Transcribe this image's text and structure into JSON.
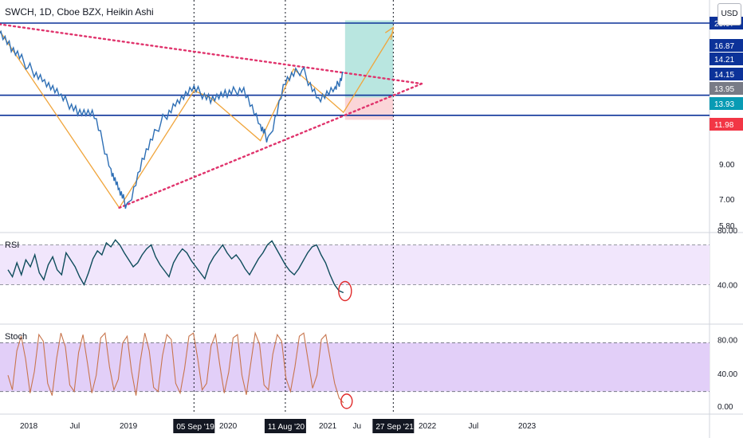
{
  "header": {
    "symbol_line": "SWCH, 1D, Cboe BZX, Heikin Ashi",
    "currency_button": "USD"
  },
  "colors": {
    "price_line": "#2e6fb5",
    "resistance_line": "#0c3299",
    "trend_dots": "#e0336c",
    "zigzag": "#f0a53c",
    "rsi_line": "#0f4c5c",
    "stoch_line": "#c8754d",
    "rsi_band": "#f1e6fc",
    "stoch_band": "#e2cff8",
    "target_zone": "#b9e6e0",
    "stop_zone": "#fbd5d8",
    "tag_blue": "#0c3299",
    "tag_grey": "#787b86",
    "tag_teal": "#089bb4",
    "tag_red": "#f23645",
    "vline": "#131722"
  },
  "chart_data": [
    {
      "type": "line",
      "pane": "price",
      "y_axis_ticks": [
        "23.07",
        "16.87",
        "14.21",
        "14.15",
        "13.95",
        "13.93",
        "11.98",
        "9.00",
        "7.00",
        "5.80"
      ],
      "price_tags": [
        {
          "value": "23.07",
          "color": "blue"
        },
        {
          "value": "16.87",
          "color": "blue"
        },
        {
          "value": "14.21",
          "color": "blue"
        },
        {
          "value": "14.15",
          "color": "blue"
        },
        {
          "value": "13.95",
          "color": "grey"
        },
        {
          "value": "13.93",
          "color": "teal"
        },
        {
          "value": "11.98",
          "color": "red"
        }
      ],
      "series": [
        {
          "x": [
            "2017-09",
            "2017-11",
            "2018-01",
            "2018-03",
            "2018-05",
            "2018-07",
            "2018-09",
            "2018-11",
            "2018-12",
            "2019-01",
            "2019-03",
            "2019-05",
            "2019-07",
            "2019-09",
            "2019-11",
            "2020-01",
            "2020-03",
            "2020-05",
            "2020-06",
            "2020-08",
            "2020-10",
            "2020-12",
            "2021-02",
            "2021-03"
          ],
          "values": [
            23.0,
            19.5,
            17.2,
            15.6,
            13.9,
            12.8,
            12.3,
            8.6,
            7.4,
            6.6,
            9.4,
            11.8,
            13.6,
            14.7,
            13.9,
            14.2,
            14.9,
            11.4,
            10.4,
            15.6,
            16.9,
            13.8,
            14.6,
            16.5
          ]
        }
      ],
      "levels": [
        23.07,
        14.15,
        12.35
      ],
      "annotations": [
        "05 Sep '19",
        "11 Aug '20",
        "27 Sep '21"
      ]
    },
    {
      "type": "line",
      "pane": "rsi",
      "label": "RSI",
      "y_axis_ticks": [
        "80.00",
        "40.00"
      ],
      "band": [
        30,
        70
      ],
      "values": [
        45,
        38,
        52,
        40,
        55,
        48,
        60,
        42,
        35,
        50,
        58,
        45,
        40,
        62,
        55,
        48,
        38,
        30,
        42,
        56,
        64,
        60,
        72,
        68,
        75,
        70,
        62,
        55,
        48,
        52,
        60,
        66,
        70,
        58,
        50,
        44,
        38,
        52,
        60,
        66,
        62,
        54,
        48,
        42,
        36,
        50,
        58,
        64,
        70,
        62,
        56,
        60,
        54,
        46,
        40,
        48,
        56,
        62,
        70,
        74,
        66,
        58,
        50,
        44,
        40,
        46,
        54,
        62,
        68,
        70,
        60,
        52,
        40,
        30,
        24,
        22
      ]
    },
    {
      "type": "line",
      "pane": "stoch",
      "label": "Stoch",
      "y_axis_ticks": [
        "80.00",
        "40.00",
        "0.00"
      ],
      "band": [
        20,
        80
      ],
      "values": [
        40,
        22,
        70,
        88,
        60,
        18,
        45,
        90,
        82,
        30,
        15,
        60,
        92,
        75,
        28,
        20,
        68,
        90,
        55,
        18,
        40,
        86,
        92,
        50,
        22,
        35,
        80,
        88,
        45,
        15,
        58,
        92,
        70,
        25,
        20,
        64,
        90,
        84,
        30,
        18,
        48,
        88,
        92,
        60,
        22,
        30,
        76,
        90,
        52,
        18,
        44,
        86,
        90,
        40,
        16,
        55,
        92,
        78,
        28,
        22,
        66,
        90,
        82,
        36,
        20,
        50,
        88,
        92,
        58,
        24,
        40,
        84,
        90,
        60,
        30,
        12,
        6
      ]
    }
  ],
  "x_axis": {
    "ticks": [
      "2018",
      "Jul",
      "2019",
      "2020",
      "2021",
      "Ju",
      "2022",
      "Jul",
      "2023"
    ],
    "highlighted": [
      "05 Sep '19",
      "11 Aug '20",
      "27 Sep '21"
    ]
  }
}
